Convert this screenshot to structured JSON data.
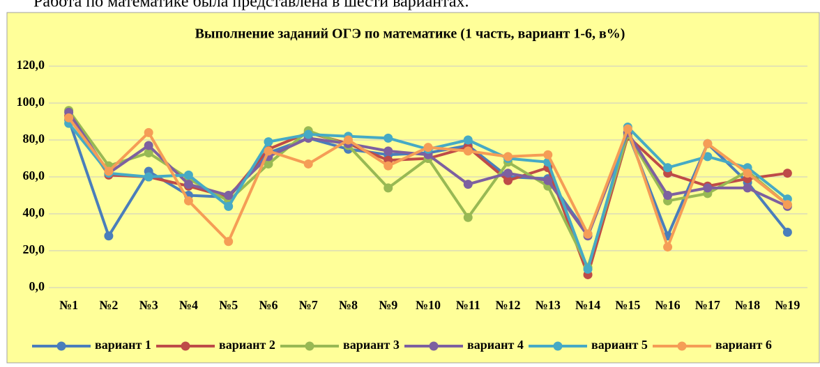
{
  "caption": "Работа по математике была представлена в шести вариантах.",
  "chart_data": {
    "type": "line",
    "title": "Выполнение заданий ОГЭ по математике (1 часть, вариант 1-6, в%)",
    "categories": [
      "№1",
      "№2",
      "№3",
      "№4",
      "№5",
      "№6",
      "№7",
      "№8",
      "№9",
      "№10",
      "№11",
      "№12",
      "№13",
      "№14",
      "№15",
      "№16",
      "№17",
      "№18",
      "№19"
    ],
    "series": [
      {
        "name": "вариант 1",
        "color": "#4a7ebb",
        "values": [
          91,
          28,
          63,
          50,
          49,
          73,
          81,
          75,
          72,
          73,
          77,
          60,
          59,
          29,
          84,
          28,
          78,
          57,
          30
        ]
      },
      {
        "name": "вариант 2",
        "color": "#be4b48",
        "values": [
          93,
          61,
          60,
          55,
          49,
          75,
          84,
          78,
          69,
          70,
          76,
          58,
          65,
          7,
          82,
          62,
          55,
          59,
          62
        ]
      },
      {
        "name": "вариант 3",
        "color": "#98b954",
        "values": [
          96,
          66,
          73,
          59,
          47,
          67,
          85,
          77,
          54,
          70,
          38,
          68,
          55,
          11,
          83,
          47,
          51,
          63,
          45
        ]
      },
      {
        "name": "вариант 4",
        "color": "#7d60a0",
        "values": [
          95,
          62,
          77,
          56,
          50,
          71,
          81,
          78,
          74,
          72,
          56,
          62,
          58,
          28,
          84,
          50,
          54,
          54,
          44
        ]
      },
      {
        "name": "вариант 5",
        "color": "#46aac5",
        "values": [
          89,
          62,
          60,
          61,
          44,
          79,
          83,
          82,
          81,
          75,
          80,
          70,
          68,
          10,
          87,
          65,
          71,
          65,
          48
        ]
      },
      {
        "name": "вариант 6",
        "color": "#f59d56",
        "values": [
          92,
          63,
          84,
          47,
          25,
          74,
          67,
          80,
          66,
          76,
          74,
          71,
          72,
          29,
          86,
          22,
          78,
          62,
          45
        ]
      }
    ],
    "ylim": [
      0,
      120
    ],
    "yticks": [
      {
        "value": 0,
        "label": "0,0"
      },
      {
        "value": 20,
        "label": "20,0"
      },
      {
        "value": 40,
        "label": "40,0"
      },
      {
        "value": 60,
        "label": "60,0"
      },
      {
        "value": 80,
        "label": "80,0"
      },
      {
        "value": 100,
        "label": "100,0"
      },
      {
        "value": 120,
        "label": "120,0"
      }
    ],
    "grid": true,
    "legend": "bottom"
  }
}
